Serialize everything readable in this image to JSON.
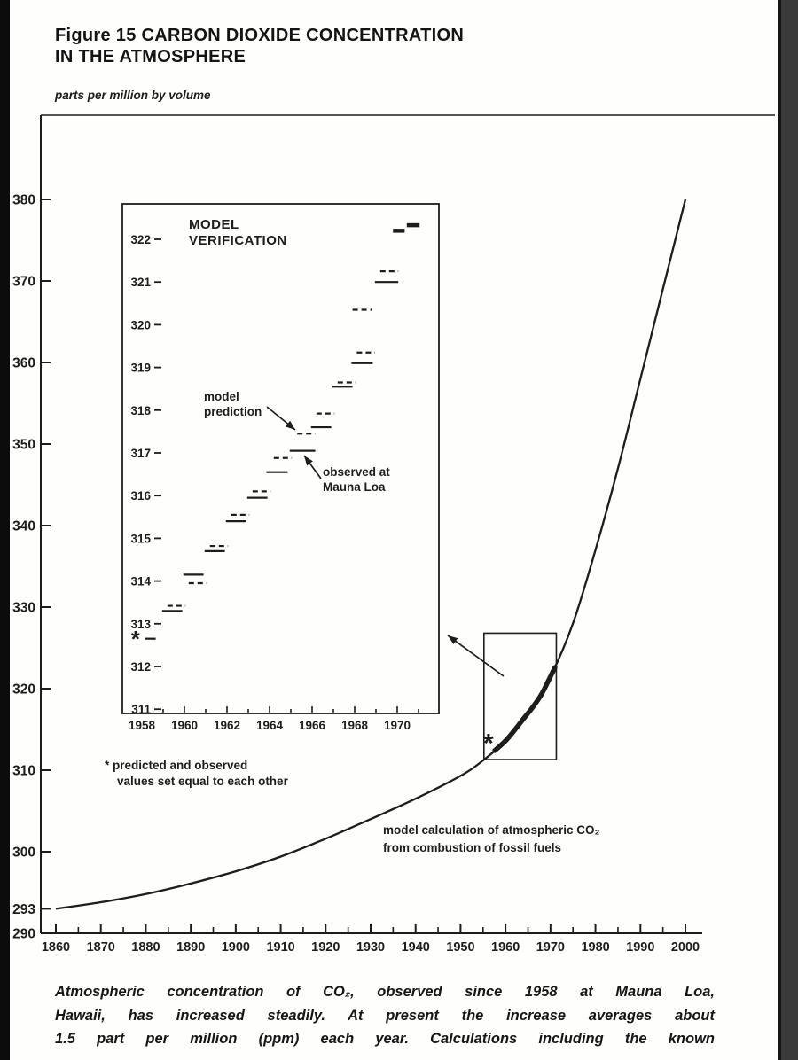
{
  "figure": {
    "title_line1": "Figure 15 CARBON DIOXIDE CONCENTRATION",
    "title_line2": "IN THE ATMOSPHERE",
    "unit_label": "parts per million by volume",
    "caption_lines": [
      "Atmospheric concentration of CO₂, observed since 1958 at Mauna Loa,",
      "Hawaii, has increased steadily. At present the increase averages about",
      "1.5 part per million (ppm) each year. Calculations including the known"
    ]
  },
  "chart_data": {
    "type": "line",
    "title": "Figure 15 Carbon Dioxide Concentration in the Atmosphere",
    "ylabel": "parts per million by volume",
    "ink_color": "#1d1d1b",
    "main": {
      "xlim": [
        1860,
        2000
      ],
      "ylim": [
        290,
        383
      ],
      "x_ticks": [
        1860,
        1870,
        1880,
        1890,
        1900,
        1910,
        1920,
        1930,
        1940,
        1950,
        1960,
        1970,
        1980,
        1990,
        2000
      ],
      "y_ticks": [
        290,
        293,
        300,
        310,
        320,
        330,
        340,
        350,
        360,
        370,
        380
      ],
      "model_curve": {
        "label_lines": [
          "model calculation of atmospheric CO₂",
          "from combustion of fossil fuels"
        ],
        "points": [
          [
            1860,
            293
          ],
          [
            1870,
            293.8
          ],
          [
            1880,
            294.8
          ],
          [
            1890,
            296.1
          ],
          [
            1900,
            297.6
          ],
          [
            1910,
            299.4
          ],
          [
            1920,
            301.6
          ],
          [
            1930,
            304.0
          ],
          [
            1940,
            306.5
          ],
          [
            1950,
            309.3
          ],
          [
            1955,
            311.2
          ],
          [
            1960,
            313.6
          ],
          [
            1965,
            317.0
          ],
          [
            1970,
            321.5
          ],
          [
            1975,
            328.0
          ],
          [
            1980,
            337.0
          ],
          [
            1985,
            347.0
          ],
          [
            1990,
            358.0
          ],
          [
            1995,
            369.0
          ],
          [
            2000,
            380.0
          ]
        ]
      },
      "observed_overlay": {
        "points": [
          [
            1957.6,
            312.4
          ],
          [
            1960,
            313.6
          ],
          [
            1962,
            314.9
          ],
          [
            1964,
            316.3
          ],
          [
            1966,
            317.7
          ],
          [
            1968,
            319.3
          ],
          [
            1970,
            321.5
          ],
          [
            1971,
            322.6
          ]
        ]
      },
      "asterisk": {
        "x": 1956.2,
        "y": 313.2
      },
      "zoom_box": {
        "x1": 1955.2,
        "y1": 311.3,
        "x2": 1971.3,
        "y2": 326.8
      }
    },
    "inset": {
      "title_lines": [
        "MODEL",
        "VERIFICATION"
      ],
      "xlim": [
        1957.1,
        1971.9
      ],
      "ylim": [
        310.75,
        322.85
      ],
      "x_ticks": [
        1958,
        1960,
        1962,
        1964,
        1966,
        1968,
        1970
      ],
      "y_ticks": [
        311,
        312,
        313,
        314,
        315,
        316,
        317,
        318,
        319,
        320,
        321,
        322
      ],
      "asterisk": {
        "x": 1957.7,
        "y": 312.62
      },
      "series": [
        {
          "name": "observed at Mauna Loa",
          "style": "solid",
          "steps": [
            [
              1958.15,
              312.65,
              0.5
            ],
            [
              1958.95,
              313.3,
              0.95
            ],
            [
              1959.95,
              314.15,
              0.95
            ],
            [
              1960.95,
              314.7,
              0.95
            ],
            [
              1961.95,
              315.4,
              0.95
            ],
            [
              1962.95,
              315.95,
              0.95
            ],
            [
              1963.85,
              316.55,
              1.0
            ],
            [
              1964.95,
              317.05,
              1.2
            ],
            [
              1965.95,
              317.6,
              0.95
            ],
            [
              1966.95,
              318.55,
              0.95
            ],
            [
              1967.85,
              319.1,
              1.0
            ],
            [
              1968.95,
              321.0,
              1.1
            ]
          ]
        },
        {
          "name": "observed at Mauna Loa",
          "style": "thick",
          "steps": [
            [
              1969.8,
              322.2,
              0.55
            ],
            [
              1970.45,
              322.33,
              0.6
            ]
          ]
        },
        {
          "name": "model prediction",
          "style": "dashed",
          "steps": [
            [
              1959.2,
              313.42,
              0.85
            ],
            [
              1960.2,
              313.95,
              0.85
            ],
            [
              1961.2,
              314.82,
              0.85
            ],
            [
              1962.2,
              315.55,
              0.85
            ],
            [
              1963.2,
              316.1,
              0.85
            ],
            [
              1964.2,
              316.88,
              0.85
            ],
            [
              1965.3,
              317.45,
              0.85
            ],
            [
              1966.2,
              317.92,
              0.85
            ],
            [
              1967.2,
              318.65,
              0.85
            ],
            [
              1967.9,
              320.35,
              0.9
            ],
            [
              1968.1,
              319.35,
              0.85
            ],
            [
              1969.2,
              321.25,
              0.85
            ]
          ]
        }
      ],
      "labels": {
        "model_prediction": [
          "model",
          "prediction"
        ],
        "observed": [
          "observed at",
          "Mauna Loa"
        ]
      },
      "footnote_lines": [
        "* predicted and observed",
        "values set equal to each other"
      ]
    }
  }
}
